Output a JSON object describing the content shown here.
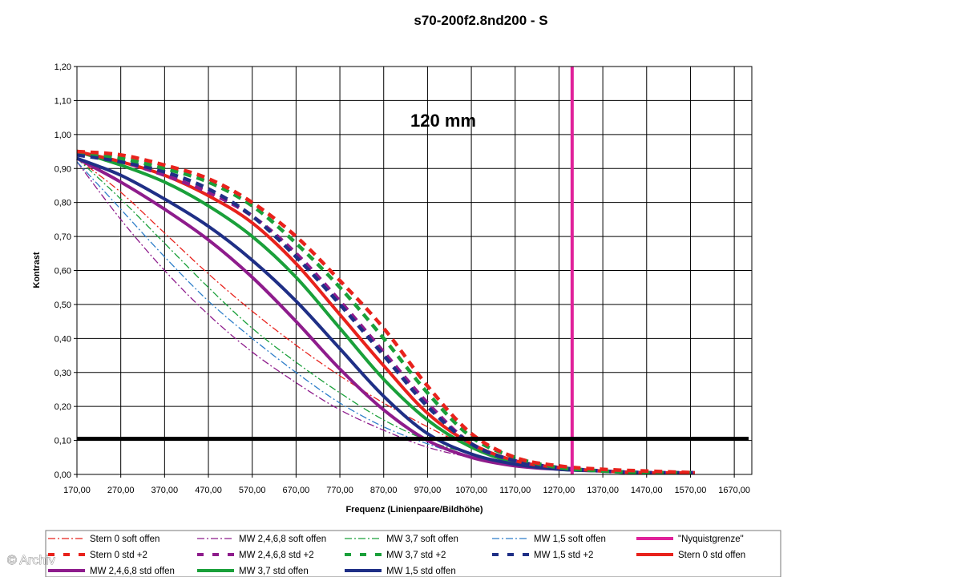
{
  "chart_data": {
    "type": "line",
    "title": "s70-200f2.8nd200 - S",
    "annotation": "120 mm",
    "xlabel": "Frequenz (Linienpaare/Bildhöhe)",
    "ylabel": "Kontrast",
    "xlim": [
      170,
      1710
    ],
    "ylim": [
      0,
      1.2
    ],
    "x_ticks": [
      "170,00",
      "270,00",
      "370,00",
      "470,00",
      "570,00",
      "670,00",
      "770,00",
      "870,00",
      "970,00",
      "1070,00",
      "1170,00",
      "1270,00",
      "1370,00",
      "1470,00",
      "1570,00",
      "1670,00"
    ],
    "y_ticks": [
      "0,00",
      "0,10",
      "0,20",
      "0,30",
      "0,40",
      "0,50",
      "0,60",
      "0,70",
      "0,80",
      "0,90",
      "1,00",
      "1,10",
      "1,20"
    ],
    "grid": true,
    "legend_position": "bottom",
    "series": [
      {
        "name": "Stern 0 soft offen",
        "color": "#e8221c",
        "style": "dashdot-thin",
        "x": [
          170,
          270,
          370,
          470,
          570,
          670,
          770,
          870,
          970,
          1070,
          1170,
          1270,
          1370,
          1470,
          1580
        ],
        "y": [
          0.93,
          0.83,
          0.71,
          0.59,
          0.48,
          0.38,
          0.29,
          0.21,
          0.14,
          0.08,
          0.04,
          0.02,
          0.01,
          0.005,
          0.005
        ]
      },
      {
        "name": "MW 2,4,6,8 soft offen",
        "color": "#8e1c8c",
        "style": "dashdot-thin",
        "x": [
          170,
          270,
          370,
          470,
          570,
          670,
          770,
          870,
          970,
          1070,
          1170,
          1270,
          1370,
          1470,
          1580
        ],
        "y": [
          0.92,
          0.75,
          0.6,
          0.47,
          0.36,
          0.27,
          0.19,
          0.13,
          0.08,
          0.05,
          0.03,
          0.015,
          0.01,
          0.005,
          0.005
        ]
      },
      {
        "name": "MW 3,7 soft offen",
        "color": "#1aa03a",
        "style": "dashdot-thin",
        "x": [
          170,
          270,
          370,
          470,
          570,
          670,
          770,
          870,
          970,
          1070,
          1170,
          1270,
          1370,
          1470,
          1580
        ],
        "y": [
          0.93,
          0.81,
          0.68,
          0.55,
          0.43,
          0.33,
          0.24,
          0.16,
          0.1,
          0.06,
          0.03,
          0.015,
          0.01,
          0.005,
          0.005
        ]
      },
      {
        "name": "MW 1,5 soft offen",
        "color": "#2e7ec9",
        "style": "dashdot-thin",
        "x": [
          170,
          270,
          370,
          470,
          570,
          670,
          770,
          870,
          970,
          1070,
          1170,
          1270,
          1370,
          1470,
          1580
        ],
        "y": [
          0.92,
          0.78,
          0.64,
          0.51,
          0.4,
          0.3,
          0.21,
          0.14,
          0.09,
          0.05,
          0.03,
          0.015,
          0.01,
          0.005,
          0.005
        ]
      },
      {
        "name": "\"Nyquistgrenze\"",
        "color": "#e0219a",
        "style": "vertical",
        "x": [
          1300,
          1300
        ],
        "y": [
          0,
          1.2
        ]
      },
      {
        "name": "Stern 0 std +2",
        "color": "#e8221c",
        "style": "dashed-thick",
        "x": [
          170,
          270,
          370,
          470,
          570,
          670,
          770,
          870,
          970,
          1070,
          1170,
          1270,
          1370,
          1470,
          1580
        ],
        "y": [
          0.95,
          0.94,
          0.91,
          0.87,
          0.8,
          0.7,
          0.57,
          0.43,
          0.26,
          0.12,
          0.05,
          0.025,
          0.015,
          0.01,
          0.005
        ]
      },
      {
        "name": "MW 2,4,6,8 std +2",
        "color": "#8e1c8c",
        "style": "dashed-thick",
        "x": [
          170,
          270,
          370,
          470,
          570,
          670,
          770,
          870,
          970,
          1070,
          1170,
          1270,
          1370,
          1470,
          1580
        ],
        "y": [
          0.94,
          0.92,
          0.88,
          0.83,
          0.76,
          0.65,
          0.51,
          0.36,
          0.21,
          0.09,
          0.04,
          0.02,
          0.01,
          0.005,
          0.005
        ]
      },
      {
        "name": "MW 3,7 std +2",
        "color": "#1aa03a",
        "style": "dashed-thick",
        "x": [
          170,
          270,
          370,
          470,
          570,
          670,
          770,
          870,
          970,
          1070,
          1170,
          1270,
          1370,
          1470,
          1580
        ],
        "y": [
          0.95,
          0.93,
          0.9,
          0.86,
          0.79,
          0.68,
          0.55,
          0.4,
          0.24,
          0.11,
          0.05,
          0.02,
          0.01,
          0.005,
          0.005
        ]
      },
      {
        "name": "MW 1,5 std +2",
        "color": "#1f2f86",
        "style": "dashed-thick",
        "x": [
          170,
          270,
          370,
          470,
          570,
          670,
          770,
          870,
          970,
          1070,
          1170,
          1270,
          1370,
          1470,
          1580
        ],
        "y": [
          0.94,
          0.92,
          0.89,
          0.84,
          0.76,
          0.64,
          0.5,
          0.35,
          0.2,
          0.09,
          0.04,
          0.02,
          0.01,
          0.005,
          0.005
        ]
      },
      {
        "name": "Stern 0 std offen",
        "color": "#e8221c",
        "style": "solid-thick",
        "x": [
          170,
          270,
          370,
          470,
          570,
          670,
          770,
          870,
          970,
          1070,
          1170,
          1270,
          1370,
          1470,
          1580
        ],
        "y": [
          0.95,
          0.92,
          0.88,
          0.82,
          0.74,
          0.62,
          0.47,
          0.32,
          0.18,
          0.09,
          0.04,
          0.02,
          0.01,
          0.005,
          0.005
        ]
      },
      {
        "name": "MW 2,4,6,8 std offen",
        "color": "#8e1c8c",
        "style": "solid-thick",
        "x": [
          170,
          270,
          370,
          470,
          570,
          670,
          770,
          870,
          970,
          1070,
          1170,
          1270,
          1370,
          1470,
          1580
        ],
        "y": [
          0.93,
          0.86,
          0.78,
          0.69,
          0.58,
          0.45,
          0.31,
          0.19,
          0.1,
          0.05,
          0.025,
          0.015,
          0.01,
          0.005,
          0.005
        ]
      },
      {
        "name": "MW 3,7 std offen",
        "color": "#1aa03a",
        "style": "solid-thick",
        "x": [
          170,
          270,
          370,
          470,
          570,
          670,
          770,
          870,
          970,
          1070,
          1170,
          1270,
          1370,
          1470,
          1580
        ],
        "y": [
          0.95,
          0.91,
          0.86,
          0.79,
          0.7,
          0.58,
          0.43,
          0.28,
          0.16,
          0.08,
          0.035,
          0.02,
          0.01,
          0.005,
          0.005
        ]
      },
      {
        "name": "MW 1,5 std offen",
        "color": "#1f2f86",
        "style": "solid-thick",
        "x": [
          170,
          270,
          370,
          470,
          570,
          670,
          770,
          870,
          970,
          1070,
          1170,
          1270,
          1370,
          1470,
          1580
        ],
        "y": [
          0.93,
          0.88,
          0.81,
          0.73,
          0.63,
          0.51,
          0.37,
          0.23,
          0.12,
          0.06,
          0.03,
          0.015,
          0.01,
          0.005,
          0.005
        ]
      }
    ],
    "threshold_line": {
      "y": 0.105,
      "color": "#000000"
    }
  },
  "watermark": "© Archiv"
}
